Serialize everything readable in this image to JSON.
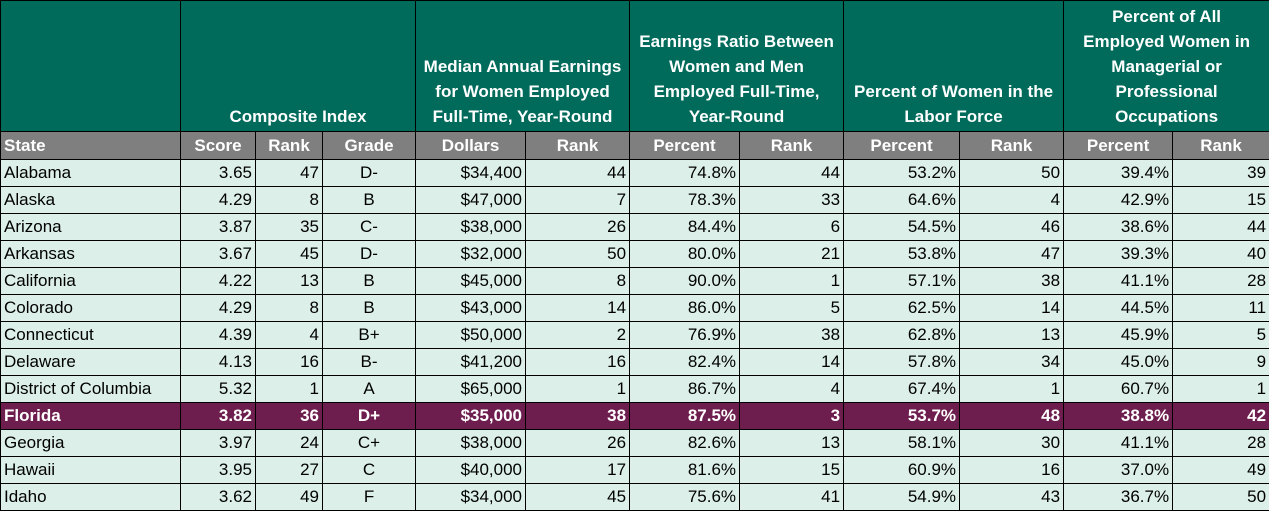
{
  "headers": {
    "groups": [
      "",
      "Composite Index",
      "Median Annual Earnings for Women Employed Full-Time, Year-Round",
      "Earnings Ratio Between Women and Men Employed Full-Time, Year-Round",
      "Percent of Women in the Labor Force",
      "Percent of All Employed Women in Managerial or Professional Occupations"
    ],
    "columns": [
      "State",
      "Score",
      "Rank",
      "Grade",
      "Dollars",
      "Rank",
      "Percent",
      "Rank",
      "Percent",
      "Rank",
      "Percent",
      "Rank"
    ]
  },
  "rows": [
    [
      "Alabama",
      "3.65",
      "47",
      "D-",
      "$34,400",
      "44",
      "74.8%",
      "44",
      "53.2%",
      "50",
      "39.4%",
      "39"
    ],
    [
      "Alaska",
      "4.29",
      "8",
      "B",
      "$47,000",
      "7",
      "78.3%",
      "33",
      "64.6%",
      "4",
      "42.9%",
      "15"
    ],
    [
      "Arizona",
      "3.87",
      "35",
      "C-",
      "$38,000",
      "26",
      "84.4%",
      "6",
      "54.5%",
      "46",
      "38.6%",
      "44"
    ],
    [
      "Arkansas",
      "3.67",
      "45",
      "D-",
      "$32,000",
      "50",
      "80.0%",
      "21",
      "53.8%",
      "47",
      "39.3%",
      "40"
    ],
    [
      "California",
      "4.22",
      "13",
      "B",
      "$45,000",
      "8",
      "90.0%",
      "1",
      "57.1%",
      "38",
      "41.1%",
      "28"
    ],
    [
      "Colorado",
      "4.29",
      "8",
      "B",
      "$43,000",
      "14",
      "86.0%",
      "5",
      "62.5%",
      "14",
      "44.5%",
      "11"
    ],
    [
      "Connecticut",
      "4.39",
      "4",
      "B+",
      "$50,000",
      "2",
      "76.9%",
      "38",
      "62.8%",
      "13",
      "45.9%",
      "5"
    ],
    [
      "Delaware",
      "4.13",
      "16",
      "B-",
      "$41,200",
      "16",
      "82.4%",
      "14",
      "57.8%",
      "34",
      "45.0%",
      "9"
    ],
    [
      "District of Columbia",
      "5.32",
      "1",
      "A",
      "$65,000",
      "1",
      "86.7%",
      "4",
      "67.4%",
      "1",
      "60.7%",
      "1"
    ],
    [
      "Florida",
      "3.82",
      "36",
      "D+",
      "$35,000",
      "38",
      "87.5%",
      "3",
      "53.7%",
      "48",
      "38.8%",
      "42"
    ],
    [
      "Georgia",
      "3.97",
      "24",
      "C+",
      "$38,000",
      "26",
      "82.6%",
      "13",
      "58.1%",
      "30",
      "41.1%",
      "28"
    ],
    [
      "Hawaii",
      "3.95",
      "27",
      "C",
      "$40,000",
      "17",
      "81.6%",
      "15",
      "60.9%",
      "16",
      "37.0%",
      "49"
    ],
    [
      "Idaho",
      "3.62",
      "49",
      "F",
      "$34,000",
      "45",
      "75.6%",
      "41",
      "54.9%",
      "43",
      "36.7%",
      "50"
    ]
  ],
  "highlighted_row": "Florida",
  "colors": {
    "header_green": "#006b5b",
    "subheader_gray": "#7f7f7f",
    "row_bg": "#dcefe9",
    "highlight_bg": "#6e1e4e"
  }
}
